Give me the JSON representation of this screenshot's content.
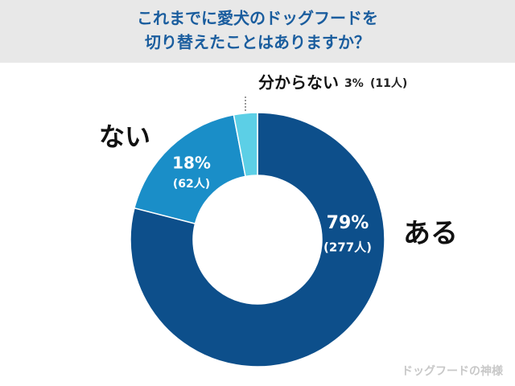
{
  "chart_data": {
    "type": "donut",
    "title_lines": [
      "これまでに愛犬のドッグフードを",
      "切り替えたことはありますか？"
    ],
    "categories": [
      "ある",
      "ない",
      "分からない"
    ],
    "values": [
      79,
      18,
      3
    ],
    "value_labels": [
      "79%",
      "18%",
      "3%"
    ],
    "count_labels": [
      "(277人)",
      "(62人)",
      "(11人)"
    ],
    "colors": [
      "#0d4f8b",
      "#1a8ec8",
      "#5ccfe6"
    ],
    "watermark": "ドッグフードの神様"
  }
}
